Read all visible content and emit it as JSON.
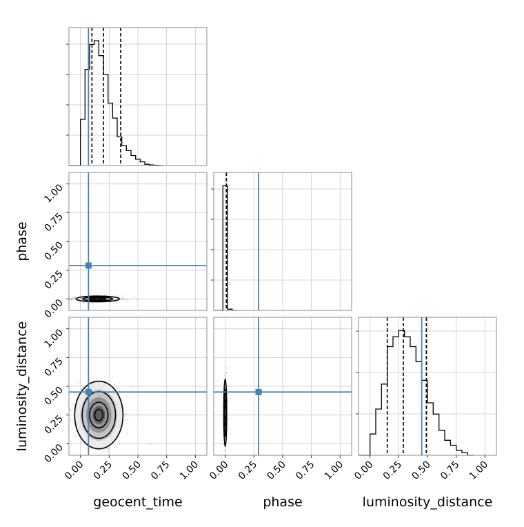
{
  "chart_data": {
    "type": "corner",
    "parameters": [
      "geocent_time",
      "phase",
      "luminosity_distance"
    ],
    "axis_range": [
      -0.1,
      1.1
    ],
    "ticks": [
      0.0,
      0.25,
      0.5,
      0.75,
      1.0
    ],
    "tick_labels": [
      "0.00",
      "0.25",
      "0.50",
      "0.75",
      "1.00"
    ],
    "grid": true,
    "truth_color": "#4682b4",
    "truths": {
      "geocent_time": 0.07,
      "phase": 0.29,
      "luminosity_distance": 0.45
    },
    "quantiles": {
      "geocent_time": [
        0.1,
        0.2,
        0.35
      ],
      "phase": [
        0.01
      ],
      "luminosity_distance": [
        0.15,
        0.29,
        0.49
      ]
    },
    "histograms": {
      "geocent_time": {
        "bin_edges": [
          0.0,
          0.04,
          0.08,
          0.12,
          0.16,
          0.2,
          0.24,
          0.28,
          0.32,
          0.36,
          0.4,
          0.44,
          0.48,
          0.52,
          0.56,
          0.6,
          0.64,
          0.68,
          0.72
        ],
        "counts": [
          0.37,
          0.77,
          0.97,
          1.0,
          0.88,
          0.73,
          0.5,
          0.38,
          0.23,
          0.16,
          0.12,
          0.08,
          0.05,
          0.03,
          0.01,
          0.005,
          0.002,
          0.0
        ]
      },
      "phase": {
        "bin_edges": [
          -0.02,
          0.02,
          0.06,
          0.1
        ],
        "counts": [
          1.0,
          0.01,
          0.0
        ]
      },
      "luminosity_distance": {
        "bin_edges": [
          0.0,
          0.05,
          0.1,
          0.15,
          0.2,
          0.25,
          0.3,
          0.35,
          0.4,
          0.45,
          0.5,
          0.55,
          0.6,
          0.65,
          0.7,
          0.75,
          0.8,
          0.85,
          0.9
        ],
        "counts": [
          0.17,
          0.37,
          0.57,
          0.87,
          0.95,
          1.0,
          0.95,
          0.87,
          0.75,
          0.6,
          0.42,
          0.33,
          0.2,
          0.12,
          0.08,
          0.04,
          0.02,
          0.0
        ]
      }
    },
    "contours_2d": {
      "phase_vs_geocent_time": {
        "center": [
          0.15,
          0.0
        ],
        "spread": [
          0.09,
          0.012
        ]
      },
      "luminosity_distance_vs_geocent_time": {
        "center": [
          0.16,
          0.25
        ],
        "spread": [
          0.1,
          0.14
        ]
      },
      "luminosity_distance_vs_phase": {
        "center": [
          0.0,
          0.27
        ],
        "spread": [
          0.006,
          0.14
        ]
      }
    }
  }
}
